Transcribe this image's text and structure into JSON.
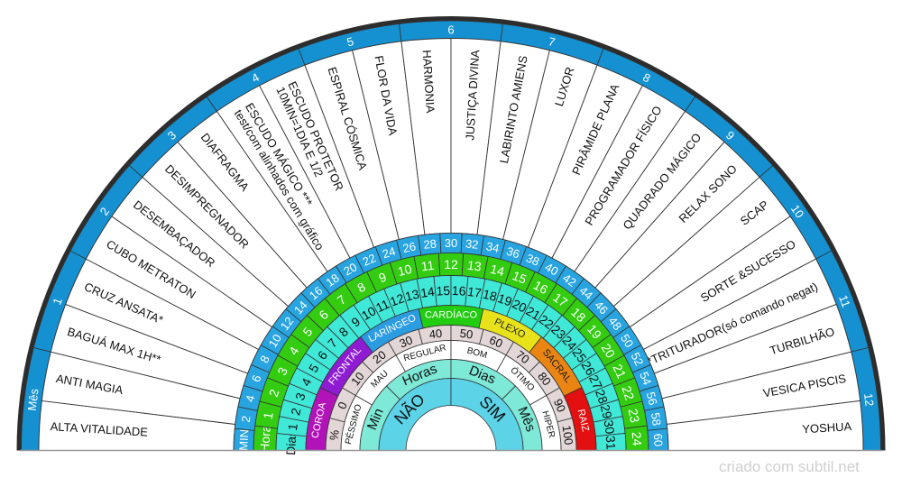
{
  "watermark": "criado com subtil.net",
  "colors": {
    "line": "#333333",
    "outer_edge": "#2d2d2d",
    "baseline": "#999999"
  },
  "outer_ring": {
    "color": "#1591d1",
    "text_color": "#ffffff",
    "labels": [
      "Mês",
      "1",
      "2",
      "3",
      "4",
      "5",
      "6",
      "7",
      "8",
      "9",
      "10",
      "11",
      "12"
    ]
  },
  "sectors": {
    "color": "#ffffff",
    "text_color": "#111111",
    "labels": [
      [
        "ALTA VITALIDADE"
      ],
      [
        "ANTI MAGIA"
      ],
      [
        "BAGUÁ MAX 1H**"
      ],
      [
        "CRUZ ANSATA*"
      ],
      [
        "CUBO METRATON"
      ],
      [
        "DESEMBAÇADOR"
      ],
      [
        "DESIMPREGNADOR"
      ],
      [
        "DIAFRAGMA"
      ],
      [
        "ESCUDO MÁGICO ***",
        "test/com alinhados com gráfico"
      ],
      [
        "ESCUDO PROTETOR",
        "10MIN=1DIA E 1/2"
      ],
      [
        "ESPIRAL CÓSMICA"
      ],
      [
        "FLOR DA VIDA"
      ],
      [
        "HARMONIA"
      ],
      [
        "JUSTIÇA DIVINA"
      ],
      [
        "LABIRINTO AMIENS"
      ],
      [
        "LUXOR"
      ],
      [
        "PIRÂMIDE PLANA"
      ],
      [
        "PROGRAMADOR FÍSICO"
      ],
      [
        "QUADRADO MÁGICO"
      ],
      [
        "RELAX SONO"
      ],
      [
        "SCAP"
      ],
      [
        "SORTE &SUCESSO"
      ],
      [
        "*TRITURADOR(só comando negat)"
      ],
      [
        "TURBILHÃO"
      ],
      [
        "VESICA PISCIS"
      ],
      [
        "YOSHUA"
      ]
    ]
  },
  "rings": [
    {
      "name": "minutes",
      "color": "#28a4e0",
      "text_color": "#ffffff",
      "labels": [
        "MIN",
        "2",
        "4",
        "6",
        "8",
        "10",
        "12",
        "14",
        "16",
        "18",
        "20",
        "22",
        "24",
        "26",
        "28",
        "30",
        "32",
        "34",
        "36",
        "38",
        "40",
        "42",
        "44",
        "46",
        "48",
        "50",
        "52",
        "54",
        "56",
        "58",
        "60"
      ]
    },
    {
      "name": "hours",
      "color": "#33cc11",
      "text_color": "#ffffff",
      "labels": [
        "Hora",
        "1",
        "2",
        "3",
        "4",
        "5",
        "6",
        "7",
        "8",
        "9",
        "10",
        "11",
        "12",
        "13",
        "14",
        "15",
        "16",
        "17",
        "18",
        "19",
        "20",
        "21",
        "22",
        "23",
        "24"
      ]
    },
    {
      "name": "days",
      "color": "#40e8d8",
      "text_color": "#111111",
      "labels": [
        "Dias",
        "1",
        "2",
        "3",
        "4",
        "5",
        "6",
        "7",
        "8",
        "9",
        "10",
        "11",
        "12",
        "13",
        "14",
        "15",
        "16",
        "17",
        "18",
        "19",
        "20",
        "21",
        "22",
        "23",
        "24",
        "25",
        "26",
        "27",
        "28",
        "29",
        "30",
        "31"
      ]
    },
    {
      "name": "chakras",
      "labels": [
        "COROA",
        "FRONTAL",
        "LARÍNGEO",
        "CARDÍACO",
        "PLEXO",
        "SACRAL",
        "RAIZ"
      ],
      "colors": [
        "#b113b9",
        "#8f1bd3",
        "#2b9ce2",
        "#22cc11",
        "#e8e21a",
        "#ea8412",
        "#e21010"
      ],
      "text_colors": [
        "#ffffff",
        "#ffffff",
        "#ffffff",
        "#ffffff",
        "#222222",
        "#222222",
        "#ffffff"
      ]
    },
    {
      "name": "percent",
      "color": "#e2d6d6",
      "text_color": "#111111",
      "labels": [
        "%",
        "0",
        "10",
        "20",
        "30",
        "40",
        "50",
        "60",
        "70",
        "80",
        "90",
        "100"
      ]
    },
    {
      "name": "quality",
      "color": "#ffffff",
      "text_color": "#111111",
      "labels": [
        "PÉSSIMO",
        "MAU",
        "REGULAR",
        "BOM",
        "ÓTIMO",
        "HIPER"
      ]
    },
    {
      "name": "time-unit",
      "color": "#7de9d6",
      "text_color": "#111111",
      "labels": [
        "Min",
        "Horas",
        "Dias",
        "Mês"
      ]
    },
    {
      "name": "yes-no",
      "color": "#5dd3e8",
      "text_color": "#111111",
      "labels": [
        "NÃO",
        "SIM"
      ]
    }
  ]
}
